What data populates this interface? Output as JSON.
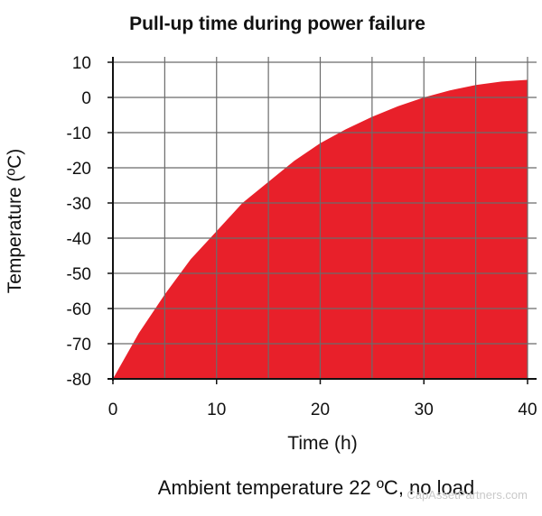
{
  "chart_data": {
    "type": "area",
    "title": "Pull-up time during power failure",
    "xlabel": "Time (h)",
    "ylabel": "Temperature (ºC)",
    "caption": "Ambient temperature 22 ºC, no load",
    "xlim": [
      0,
      40
    ],
    "ylim": [
      -80,
      10
    ],
    "xticks": [
      "0",
      "10",
      "20",
      "30",
      "40"
    ],
    "yticks": [
      "10",
      "0",
      "-10",
      "-20",
      "-30",
      "-40",
      "-50",
      "-60",
      "-70",
      "-80"
    ],
    "x_grid_step": 5,
    "y_grid_step": 10,
    "grid": true,
    "series": [
      {
        "color": "#e8202a",
        "x": [
          0,
          2.5,
          5,
          7.5,
          10,
          12.5,
          15,
          17.5,
          20,
          22.5,
          25,
          27.5,
          30,
          32.5,
          35,
          37.5,
          40
        ],
        "y": [
          -80,
          -67,
          -56,
          -46,
          -38,
          -30,
          -24,
          -18,
          -13,
          -9,
          -5.5,
          -2.5,
          0,
          2,
          3.5,
          4.5,
          5
        ]
      }
    ]
  },
  "watermark": "CapAssetPartners.com"
}
